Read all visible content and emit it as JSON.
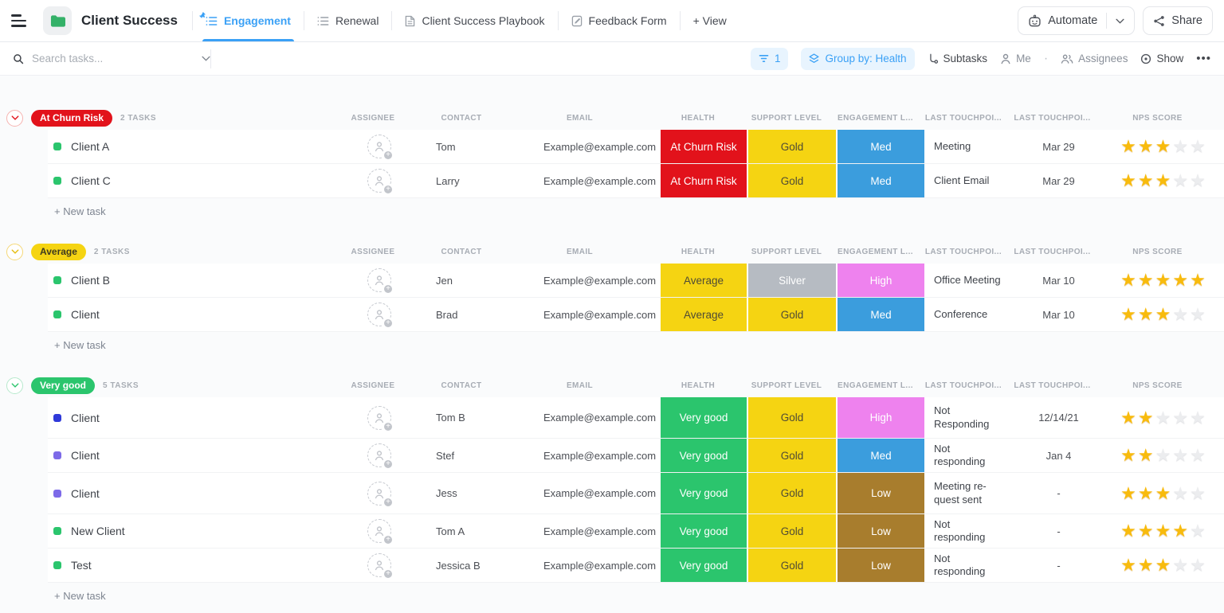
{
  "header": {
    "title": "Client Success",
    "tabs": [
      {
        "label": "Engagement"
      },
      {
        "label": "Renewal"
      },
      {
        "label": "Client Success Playbook"
      },
      {
        "label": "Feedback Form"
      }
    ],
    "add_view_label": "+ View",
    "automate_label": "Automate",
    "share_label": "Share"
  },
  "toolbar": {
    "search_placeholder": "Search tasks...",
    "filter_count": "1",
    "group_by_label": "Group by: Health",
    "subtasks_label": "Subtasks",
    "me_label": "Me",
    "separator": "·",
    "assignees_label": "Assignees",
    "show_label": "Show",
    "more_label": "•••"
  },
  "table": {
    "columns": [
      "ASSIGNEE",
      "CONTACT",
      "EMAIL",
      "HEALTH",
      "SUPPORT LEVEL",
      "ENGAGEMENT L...",
      "LAST TOUCHPOI...",
      "LAST TOUCHPOI...",
      "NPS SCORE"
    ]
  },
  "labels": {
    "new_task": "+ New task"
  },
  "icons": {
    "menu": "hamburger",
    "folder": "green-folder",
    "pin": "pushpin",
    "list": "list-view",
    "doc": "document",
    "form": "clipboard-pencil",
    "plus": "+",
    "robot": "automation-robot",
    "chevron_down": "chevron-down",
    "share": "share-nodes",
    "search": "magnifier",
    "filter": "filter-lines",
    "layers": "group-by-layers",
    "subtasks": "branch",
    "person": "person",
    "people": "two-people",
    "eye": "eye",
    "star": "★",
    "avatar_add": "person-plus"
  },
  "colors": {
    "accent": "#3ba1f6",
    "pill_bg": "#e8f4fe",
    "page_bg": "#fafbfc",
    "red": "#e2121b",
    "gold": "#f5d412",
    "gold_text": "#4f4b35",
    "blue": "#3b9ddd",
    "silver": "#b6bbc2",
    "violet": "#ee82ee",
    "green": "#2bc56d",
    "brown": "#a87d2d",
    "status_blue": "#2f39d9",
    "status_purple": "#7d6ae8",
    "star_filled": "#f8bb0d",
    "star_empty": "#ecedef"
  },
  "groups": [
    {
      "name": "At Churn Risk",
      "badge_bg": "#e2121b",
      "badge_fg": "#ffffff",
      "chevron_border": "#f6b3b0",
      "chevron_color": "#e2121b",
      "count": "2 TASKS",
      "tasks": [
        {
          "name": "Client A",
          "status": "#2bc56d",
          "contact": "Tom",
          "email": "Example@example.com",
          "health": {
            "label": "At Churn Risk",
            "bg": "#e2121b",
            "fg": "#ffffff"
          },
          "support": {
            "label": "Gold",
            "bg": "#f5d412",
            "fg": "#4f4b35"
          },
          "engagement": {
            "label": "Med",
            "bg": "#3b9ddd",
            "fg": "#ffffff"
          },
          "touchpoint": "Meeting",
          "date": "Mar 29",
          "nps": 3
        },
        {
          "name": "Client C",
          "status": "#2bc56d",
          "contact": "Larry",
          "email": "Example@example.com",
          "health": {
            "label": "At Churn Risk",
            "bg": "#e2121b",
            "fg": "#ffffff"
          },
          "support": {
            "label": "Gold",
            "bg": "#f5d412",
            "fg": "#4f4b35"
          },
          "engagement": {
            "label": "Med",
            "bg": "#3b9ddd",
            "fg": "#ffffff"
          },
          "touchpoint": "Client Email",
          "date": "Mar 29",
          "nps": 3
        }
      ]
    },
    {
      "name": "Average",
      "badge_bg": "#f5d412",
      "badge_fg": "#3e3a20",
      "chevron_border": "#f5d878",
      "chevron_color": "#e5bd0f",
      "count": "2 TASKS",
      "tasks": [
        {
          "name": "Client B",
          "status": "#2bc56d",
          "contact": "Jen",
          "email": "Example@example.com",
          "health": {
            "label": "Average",
            "bg": "#f5d412",
            "fg": "#4f4b35"
          },
          "support": {
            "label": "Silver",
            "bg": "#b6bbc2",
            "fg": "#ffffff"
          },
          "engagement": {
            "label": "High",
            "bg": "#ee82ee",
            "fg": "#ffffff"
          },
          "touchpoint": "Office Meeting",
          "date": "Mar 10",
          "nps": 5
        },
        {
          "name": "Client",
          "status": "#2bc56d",
          "contact": "Brad",
          "email": "Example@example.com",
          "health": {
            "label": "Average",
            "bg": "#f5d412",
            "fg": "#4f4b35"
          },
          "support": {
            "label": "Gold",
            "bg": "#f5d412",
            "fg": "#4f4b35"
          },
          "engagement": {
            "label": "Med",
            "bg": "#3b9ddd",
            "fg": "#ffffff"
          },
          "touchpoint": "Conference",
          "date": "Mar 10",
          "nps": 3
        }
      ]
    },
    {
      "name": "Very good",
      "badge_bg": "#2bc56d",
      "badge_fg": "#ffffff",
      "chevron_border": "#b7e9cd",
      "chevron_color": "#2bc56d",
      "count": "5 TASKS",
      "tasks": [
        {
          "name": "Client",
          "status": "#2f39d9",
          "contact": "Tom B",
          "email": "Example@example.com",
          "health": {
            "label": "Very good",
            "bg": "#2bc56d",
            "fg": "#ffffff"
          },
          "support": {
            "label": "Gold",
            "bg": "#f5d412",
            "fg": "#4f4b35"
          },
          "engagement": {
            "label": "High",
            "bg": "#ee82ee",
            "fg": "#ffffff"
          },
          "touchpoint": "Not\nResponding",
          "date": "12/14/21",
          "nps": 2
        },
        {
          "name": "Client",
          "status": "#7d6ae8",
          "contact": "Stef",
          "email": "Example@example.com",
          "health": {
            "label": "Very good",
            "bg": "#2bc56d",
            "fg": "#ffffff"
          },
          "support": {
            "label": "Gold",
            "bg": "#f5d412",
            "fg": "#4f4b35"
          },
          "engagement": {
            "label": "Med",
            "bg": "#3b9ddd",
            "fg": "#ffffff"
          },
          "touchpoint": "Not responding",
          "date": "Jan 4",
          "nps": 2
        },
        {
          "name": "Client",
          "status": "#7d6ae8",
          "contact": "Jess",
          "email": "Example@example.com",
          "health": {
            "label": "Very good",
            "bg": "#2bc56d",
            "fg": "#ffffff"
          },
          "support": {
            "label": "Gold",
            "bg": "#f5d412",
            "fg": "#4f4b35"
          },
          "engagement": {
            "label": "Low",
            "bg": "#a87d2d",
            "fg": "#ffffff"
          },
          "touchpoint": "Meeting re-\nquest sent",
          "date": "-",
          "nps": 3
        },
        {
          "name": "New Client",
          "status": "#2bc56d",
          "contact": "Tom A",
          "email": "Example@example.com",
          "health": {
            "label": "Very good",
            "bg": "#2bc56d",
            "fg": "#ffffff"
          },
          "support": {
            "label": "Gold",
            "bg": "#f5d412",
            "fg": "#4f4b35"
          },
          "engagement": {
            "label": "Low",
            "bg": "#a87d2d",
            "fg": "#ffffff"
          },
          "touchpoint": "Not responding",
          "date": "-",
          "nps": 4
        },
        {
          "name": "Test",
          "status": "#2bc56d",
          "contact": "Jessica B",
          "email": "Example@example.com",
          "health": {
            "label": "Very good",
            "bg": "#2bc56d",
            "fg": "#ffffff"
          },
          "support": {
            "label": "Gold",
            "bg": "#f5d412",
            "fg": "#4f4b35"
          },
          "engagement": {
            "label": "Low",
            "bg": "#a87d2d",
            "fg": "#ffffff"
          },
          "touchpoint": "Not responding",
          "date": "-",
          "nps": 3
        }
      ]
    }
  ]
}
